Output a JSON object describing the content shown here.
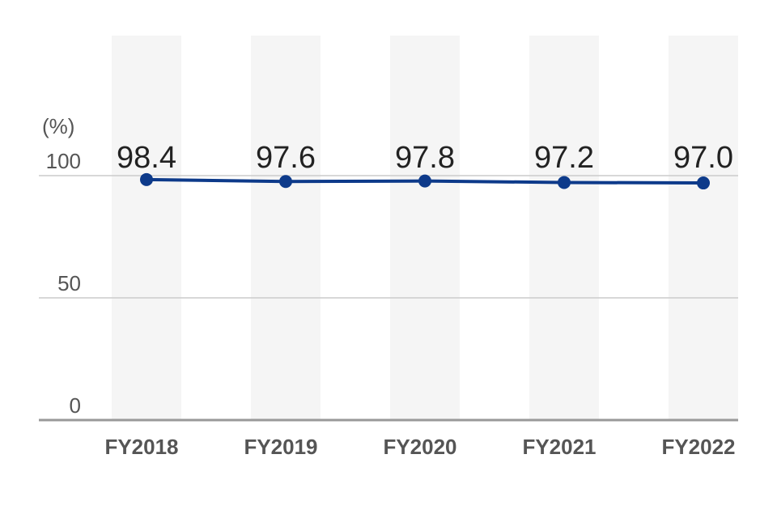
{
  "chart_data": {
    "type": "line",
    "unit": "(%)",
    "categories": [
      "FY2018",
      "FY2019",
      "FY2020",
      "FY2021",
      "FY2022"
    ],
    "values": [
      98.4,
      97.6,
      97.8,
      97.2,
      97.0
    ],
    "data_labels": [
      "98.4",
      "97.6",
      "97.8",
      "97.2",
      "97.0"
    ],
    "yticks": [
      0,
      50,
      100
    ],
    "ytick_labels": [
      "0",
      "50",
      "100"
    ],
    "ylim": [
      0,
      150
    ],
    "grid": true,
    "line_color": "#0d3a8a",
    "column_band_color": "#f5f5f5",
    "gridline_color": "#cccccc",
    "axis_color": "#999999"
  }
}
